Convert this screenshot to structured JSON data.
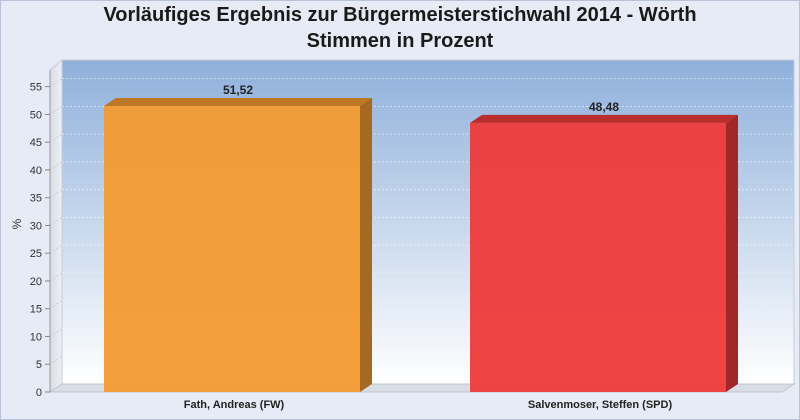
{
  "chart_data": {
    "type": "bar",
    "title": "Vorläufiges Ergebnis zur Bürgermeisterstichwahl 2014 - Wörth",
    "subtitle": "Stimmen in Prozent",
    "xlabel": "",
    "ylabel": "%",
    "ylim": [
      0,
      58
    ],
    "yticks": [
      0,
      5,
      10,
      15,
      20,
      25,
      30,
      35,
      40,
      45,
      50,
      55
    ],
    "grid": true,
    "categories": [
      "Fath, Andreas (FW)",
      "Salvenmoser, Steffen (SPD)"
    ],
    "values": [
      51.52,
      48.48
    ],
    "value_labels": [
      "51,52",
      "48,48"
    ],
    "colors": [
      "#f39a30",
      "#ee3a3a"
    ]
  }
}
